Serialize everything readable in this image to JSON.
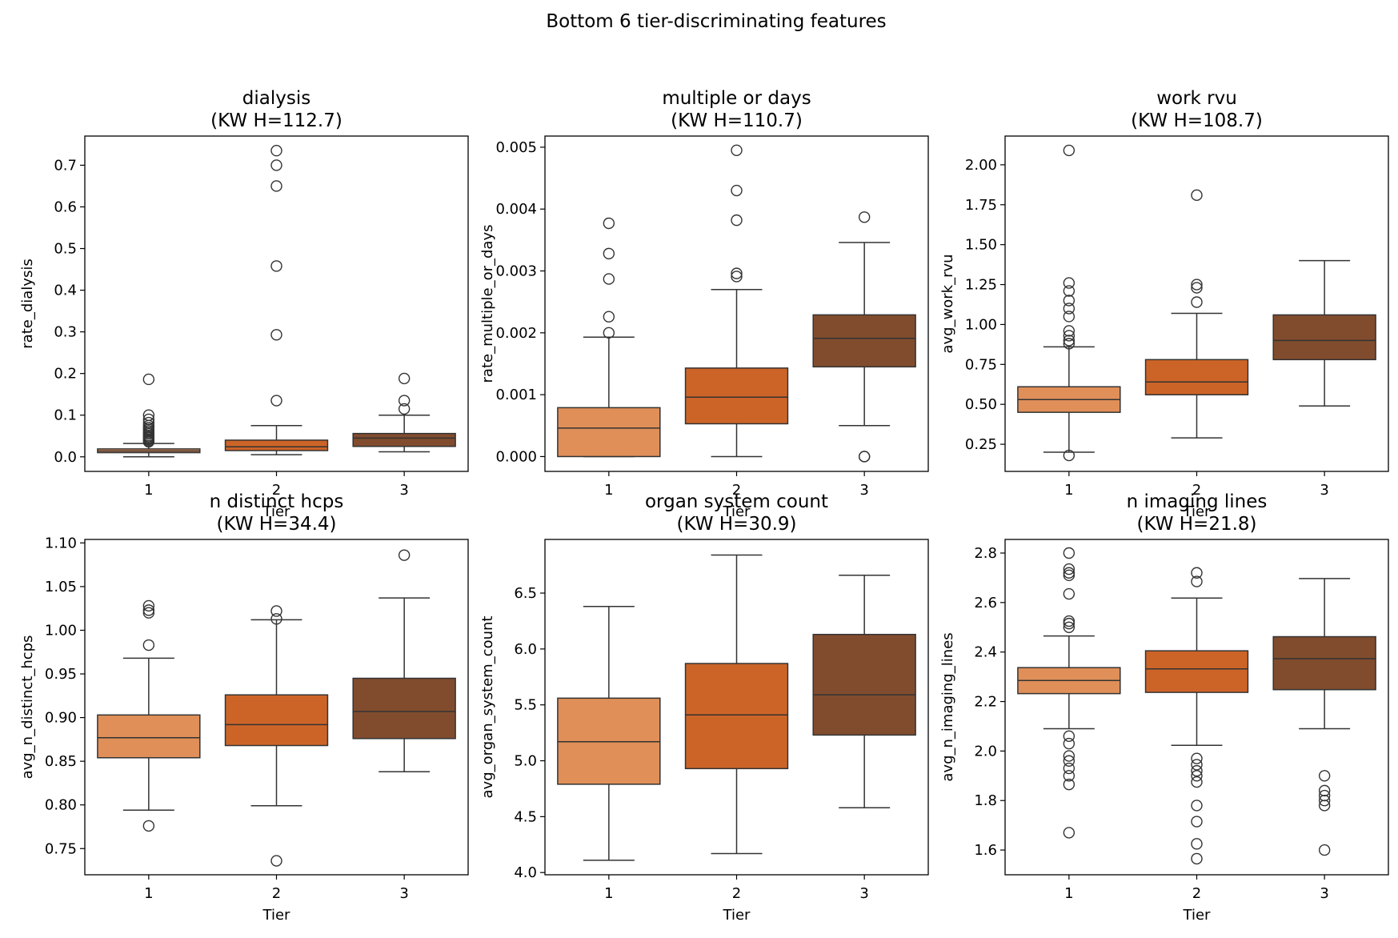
{
  "figure": {
    "title": "Bottom 6 tier-discriminating features",
    "palette": [
      "#e08f58",
      "#cd6427",
      "#814c2e"
    ]
  },
  "chart_data": [
    {
      "type": "box",
      "title_line1": "dialysis",
      "title_line2": "(KW H=112.7)",
      "xlabel": "Tier",
      "ylabel": "rate_dialysis",
      "categories": [
        "1",
        "2",
        "3"
      ],
      "ylim": [
        -0.035,
        0.77
      ],
      "yticks": [
        0.0,
        0.1,
        0.2,
        0.3,
        0.4,
        0.5,
        0.6,
        0.7
      ],
      "ytick_labels": [
        "0.0",
        "0.1",
        "0.2",
        "0.3",
        "0.4",
        "0.5",
        "0.6",
        "0.7"
      ],
      "boxes": [
        {
          "q1": 0.01,
          "median": 0.014,
          "q3": 0.019,
          "whislo": 0.0,
          "whishi": 0.032,
          "fliers": [
            0.036,
            0.039,
            0.042,
            0.045,
            0.048,
            0.051,
            0.055,
            0.058,
            0.062,
            0.066,
            0.07,
            0.075,
            0.082,
            0.09,
            0.1,
            0.186
          ]
        },
        {
          "q1": 0.015,
          "median": 0.024,
          "q3": 0.04,
          "whislo": 0.005,
          "whishi": 0.075,
          "fliers": [
            0.135,
            0.293,
            0.458,
            0.65,
            0.7,
            0.735
          ]
        },
        {
          "q1": 0.025,
          "median": 0.045,
          "q3": 0.056,
          "whislo": 0.012,
          "whishi": 0.1,
          "fliers": [
            0.115,
            0.135,
            0.188
          ]
        }
      ]
    },
    {
      "type": "box",
      "title_line1": "multiple or days",
      "title_line2": "(KW H=110.7)",
      "xlabel": "Tier",
      "ylabel": "rate_multiple_or_days",
      "categories": [
        "1",
        "2",
        "3"
      ],
      "ylim": [
        -0.00024,
        0.00518
      ],
      "yticks": [
        0.0,
        0.001,
        0.002,
        0.003,
        0.004,
        0.005
      ],
      "ytick_labels": [
        "0.000",
        "0.001",
        "0.002",
        "0.003",
        "0.004",
        "0.005"
      ],
      "boxes": [
        {
          "q1": 0.0,
          "median": 0.00046,
          "q3": 0.00079,
          "whislo": 0.0,
          "whishi": 0.00193,
          "fliers": [
            0.002,
            0.00226,
            0.00287,
            0.00328,
            0.00377
          ]
        },
        {
          "q1": 0.00053,
          "median": 0.00096,
          "q3": 0.00143,
          "whislo": 0.0,
          "whishi": 0.0027,
          "fliers": [
            0.00291,
            0.00296,
            0.00382,
            0.0043,
            0.00495
          ]
        },
        {
          "q1": 0.00145,
          "median": 0.00191,
          "q3": 0.00229,
          "whislo": 0.0005,
          "whishi": 0.00346,
          "fliers": [
            0.0,
            0.0,
            0.00387
          ]
        }
      ]
    },
    {
      "type": "box",
      "title_line1": "work rvu",
      "title_line2": "(KW H=108.7)",
      "xlabel": "Tier",
      "ylabel": "avg_work_rvu",
      "categories": [
        "1",
        "2",
        "3"
      ],
      "ylim": [
        0.08,
        2.18
      ],
      "yticks": [
        0.25,
        0.5,
        0.75,
        1.0,
        1.25,
        1.5,
        1.75,
        2.0
      ],
      "ytick_labels": [
        "0.25",
        "0.50",
        "0.75",
        "1.00",
        "1.25",
        "1.50",
        "1.75",
        "2.00"
      ],
      "boxes": [
        {
          "q1": 0.45,
          "median": 0.53,
          "q3": 0.61,
          "whislo": 0.2,
          "whishi": 0.86,
          "fliers": [
            0.18,
            0.88,
            0.9,
            0.93,
            0.96,
            1.05,
            1.1,
            1.15,
            1.21,
            1.26,
            2.09
          ]
        },
        {
          "q1": 0.56,
          "median": 0.64,
          "q3": 0.78,
          "whislo": 0.29,
          "whishi": 1.07,
          "fliers": [
            1.14,
            1.23,
            1.25,
            1.81
          ]
        },
        {
          "q1": 0.78,
          "median": 0.9,
          "q3": 1.06,
          "whislo": 0.49,
          "whishi": 1.4,
          "fliers": []
        }
      ]
    },
    {
      "type": "box",
      "title_line1": "n distinct hcps",
      "title_line2": "(KW H=34.4)",
      "xlabel": "Tier",
      "ylabel": "avg_n_distinct_hcps",
      "categories": [
        "1",
        "2",
        "3"
      ],
      "ylim": [
        0.72,
        1.104
      ],
      "yticks": [
        0.75,
        0.8,
        0.85,
        0.9,
        0.95,
        1.0,
        1.05,
        1.1
      ],
      "ytick_labels": [
        "0.75",
        "0.80",
        "0.85",
        "0.90",
        "0.95",
        "1.00",
        "1.05",
        "1.10"
      ],
      "boxes": [
        {
          "q1": 0.854,
          "median": 0.877,
          "q3": 0.903,
          "whislo": 0.794,
          "whishi": 0.968,
          "fliers": [
            0.776,
            0.983,
            1.02,
            1.023,
            1.028
          ]
        },
        {
          "q1": 0.868,
          "median": 0.892,
          "q3": 0.926,
          "whislo": 0.799,
          "whishi": 1.012,
          "fliers": [
            0.736,
            1.013,
            1.022
          ]
        },
        {
          "q1": 0.876,
          "median": 0.907,
          "q3": 0.945,
          "whislo": 0.838,
          "whishi": 1.037,
          "fliers": [
            1.086
          ]
        }
      ]
    },
    {
      "type": "box",
      "title_line1": "organ system count",
      "title_line2": "(KW H=30.9)",
      "xlabel": "Tier",
      "ylabel": "avg_organ_system_count",
      "categories": [
        "1",
        "2",
        "3"
      ],
      "ylim": [
        3.98,
        6.98
      ],
      "yticks": [
        4.0,
        4.5,
        5.0,
        5.5,
        6.0,
        6.5
      ],
      "ytick_labels": [
        "4.0",
        "4.5",
        "5.0",
        "5.5",
        "6.0",
        "6.5"
      ],
      "boxes": [
        {
          "q1": 4.79,
          "median": 5.17,
          "q3": 5.56,
          "whislo": 4.11,
          "whishi": 6.38,
          "fliers": []
        },
        {
          "q1": 4.93,
          "median": 5.41,
          "q3": 5.87,
          "whislo": 4.17,
          "whishi": 6.84,
          "fliers": []
        },
        {
          "q1": 5.23,
          "median": 5.59,
          "q3": 6.13,
          "whislo": 4.58,
          "whishi": 6.66,
          "fliers": []
        }
      ]
    },
    {
      "type": "box",
      "title_line1": "n imaging lines",
      "title_line2": "(KW H=21.8)",
      "xlabel": "Tier",
      "ylabel": "avg_n_imaging_lines",
      "categories": [
        "1",
        "2",
        "3"
      ],
      "ylim": [
        1.5,
        2.855
      ],
      "yticks": [
        1.6,
        1.8,
        2.0,
        2.2,
        2.4,
        2.6,
        2.8
      ],
      "ytick_labels": [
        "1.6",
        "1.8",
        "2.0",
        "2.2",
        "2.4",
        "2.6",
        "2.8"
      ],
      "boxes": [
        {
          "q1": 2.232,
          "median": 2.285,
          "q3": 2.337,
          "whislo": 2.09,
          "whishi": 2.465,
          "fliers": [
            1.67,
            1.865,
            1.9,
            1.93,
            1.96,
            1.98,
            2.03,
            2.06,
            2.5,
            2.515,
            2.525,
            2.635,
            2.71,
            2.72,
            2.735,
            2.8
          ]
        },
        {
          "q1": 2.237,
          "median": 2.332,
          "q3": 2.405,
          "whislo": 2.023,
          "whishi": 2.618,
          "fliers": [
            1.565,
            1.625,
            1.715,
            1.78,
            1.875,
            1.9,
            1.92,
            1.945,
            1.97,
            2.685,
            2.72
          ]
        },
        {
          "q1": 2.248,
          "median": 2.373,
          "q3": 2.462,
          "whislo": 2.09,
          "whishi": 2.697,
          "fliers": [
            1.6,
            1.78,
            1.8,
            1.82,
            1.84,
            1.9
          ]
        }
      ]
    }
  ]
}
